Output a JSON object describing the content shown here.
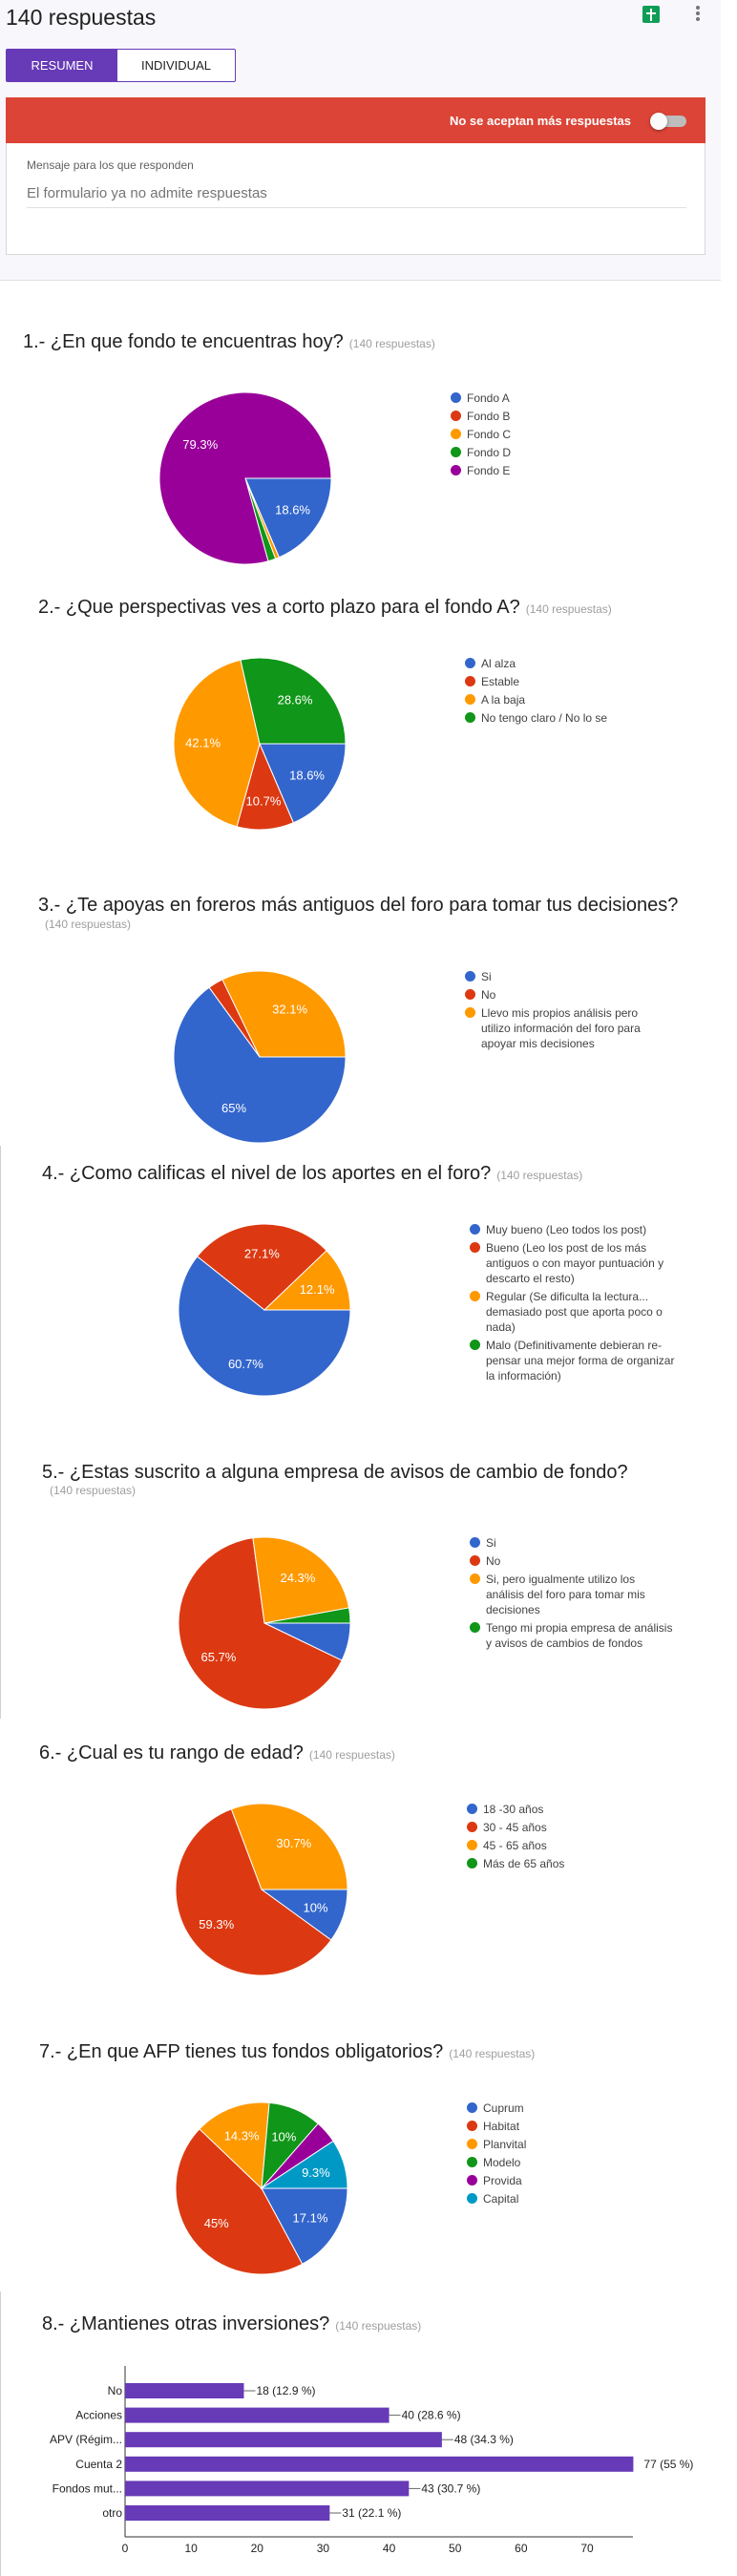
{
  "header": {
    "title": "140 respuestas",
    "sheets_icon": "google-sheets-icon",
    "more_icon": "more-vert-icon"
  },
  "tabs": [
    {
      "label": "RESUMEN",
      "active": true
    },
    {
      "label": "INDIVIDUAL",
      "active": false
    }
  ],
  "banner": {
    "text": "No se aceptan más respuestas",
    "accepting": false,
    "color": "#db4437"
  },
  "message": {
    "label": "Mensaje para los que responden",
    "placeholder": "El formulario ya no admite respuestas"
  },
  "colors": [
    "#3366cc",
    "#dc3912",
    "#ff9900",
    "#109618",
    "#990099",
    "#0099c6"
  ],
  "questions": [
    {
      "title": "1.- ¿En que fondo te encuentras hoy?",
      "count": "(140 respuestas)",
      "chart_type": "pie",
      "slices": [
        {
          "name": "Fondo A",
          "value": 26,
          "label": "18.6%"
        },
        {
          "name": "Fondo B",
          "value": 0,
          "label": ""
        },
        {
          "name": "Fondo C",
          "value": 1,
          "label": ""
        },
        {
          "name": "Fondo D",
          "value": 2,
          "label": ""
        },
        {
          "name": "Fondo E",
          "value": 111,
          "label": "79.3%"
        }
      ]
    },
    {
      "title": "2.- ¿Que perspectivas ves a corto plazo para el fondo A?",
      "count": "(140 respuestas)",
      "chart_type": "pie",
      "slices": [
        {
          "name": "Al alza",
          "value": 26,
          "label": "18.6%"
        },
        {
          "name": "Estable",
          "value": 15,
          "label": "10.7%"
        },
        {
          "name": "A la baja",
          "value": 59,
          "label": "42.1%"
        },
        {
          "name": "No tengo claro / No lo se",
          "value": 40,
          "label": "28.6%"
        }
      ]
    },
    {
      "title": "3.- ¿Te apoyas en foreros más antiguos del foro para tomar tus decisiones?",
      "count": "(140 respuestas)",
      "chart_type": "pie",
      "slices": [
        {
          "name": "Si",
          "value": 91,
          "label": "65%"
        },
        {
          "name": "No",
          "value": 4,
          "label": ""
        },
        {
          "name": "Llevo mis propios análisis pero utilizo información del foro para apoyar mis decisiones",
          "value": 45,
          "label": "32.1%"
        }
      ]
    },
    {
      "title": "4.- ¿Como calificas el nivel de los aportes en el foro?",
      "count": "(140 respuestas)",
      "chart_type": "pie",
      "slices": [
        {
          "name": "Muy bueno (Leo todos los post)",
          "value": 85,
          "label": "60.7%"
        },
        {
          "name": "Bueno (Leo los post de los más antiguos o con mayor puntuación y descarto el resto)",
          "value": 38,
          "label": "27.1%"
        },
        {
          "name": "Regular (Se dificulta la lectura... demasiado post que aporta poco o nada)",
          "value": 17,
          "label": "12.1%"
        },
        {
          "name": "Malo (Definitivamente debieran re-pensar una mejor forma de organizar la información)",
          "value": 0,
          "label": ""
        }
      ]
    },
    {
      "title": "5.- ¿Estas suscrito a alguna empresa de avisos de cambio de fondo?",
      "count": "(140 respuestas)",
      "chart_type": "pie",
      "slices": [
        {
          "name": "Si",
          "value": 10,
          "label": ""
        },
        {
          "name": "No",
          "value": 92,
          "label": "65.7%"
        },
        {
          "name": "Si, pero igualmente utilizo los análisis del foro para tomar mis decisiones",
          "value": 34,
          "label": "24.3%"
        },
        {
          "name": "Tengo mi propia empresa de análisis y avisos de cambios de fondos",
          "value": 4,
          "label": ""
        }
      ]
    },
    {
      "title": "6.- ¿Cual es tu rango de edad?",
      "count": "(140 respuestas)",
      "chart_type": "pie",
      "slices": [
        {
          "name": "18 -30 años",
          "value": 14,
          "label": "10%"
        },
        {
          "name": "30 - 45 años",
          "value": 83,
          "label": "59.3%"
        },
        {
          "name": "45 - 65 años",
          "value": 43,
          "label": "30.7%"
        },
        {
          "name": "Más de 65 años",
          "value": 0,
          "label": ""
        }
      ]
    },
    {
      "title": "7.- ¿En que AFP tienes tus fondos obligatorios?",
      "count": "(140 respuestas)",
      "chart_type": "pie",
      "slices": [
        {
          "name": "Cuprum",
          "value": 24,
          "label": "17.1%"
        },
        {
          "name": "Habitat",
          "value": 63,
          "label": "45%"
        },
        {
          "name": "Planvital",
          "value": 20,
          "label": "14.3%"
        },
        {
          "name": "Modelo",
          "value": 14,
          "label": "10%"
        },
        {
          "name": "Provida",
          "value": 6,
          "label": ""
        },
        {
          "name": "Capital",
          "value": 13,
          "label": "9.3%"
        }
      ]
    },
    {
      "title": "8.- ¿Mantienes otras inversiones?",
      "count": "(140 respuestas)",
      "chart_type": "bar"
    }
  ],
  "chart_data": {
    "type": "bar",
    "orientation": "horizontal",
    "categories": [
      "No",
      "Acciones",
      "APV (Régim...",
      "Cuenta 2",
      "Fondos mut...",
      "otro"
    ],
    "values": [
      18,
      40,
      48,
      77,
      43,
      31
    ],
    "data_labels": [
      "18 (12.9 %)",
      "40 (28.6 %)",
      "48 (34.3 %)",
      "77 (55 %)",
      "43 (30.7 %)",
      "31 (22.1 %)"
    ],
    "xlim": [
      0,
      77
    ],
    "xticks": [
      "0",
      "10",
      "20",
      "30",
      "40",
      "50",
      "60",
      "70"
    ],
    "bar_color": "#673ab7",
    "grid": false
  }
}
